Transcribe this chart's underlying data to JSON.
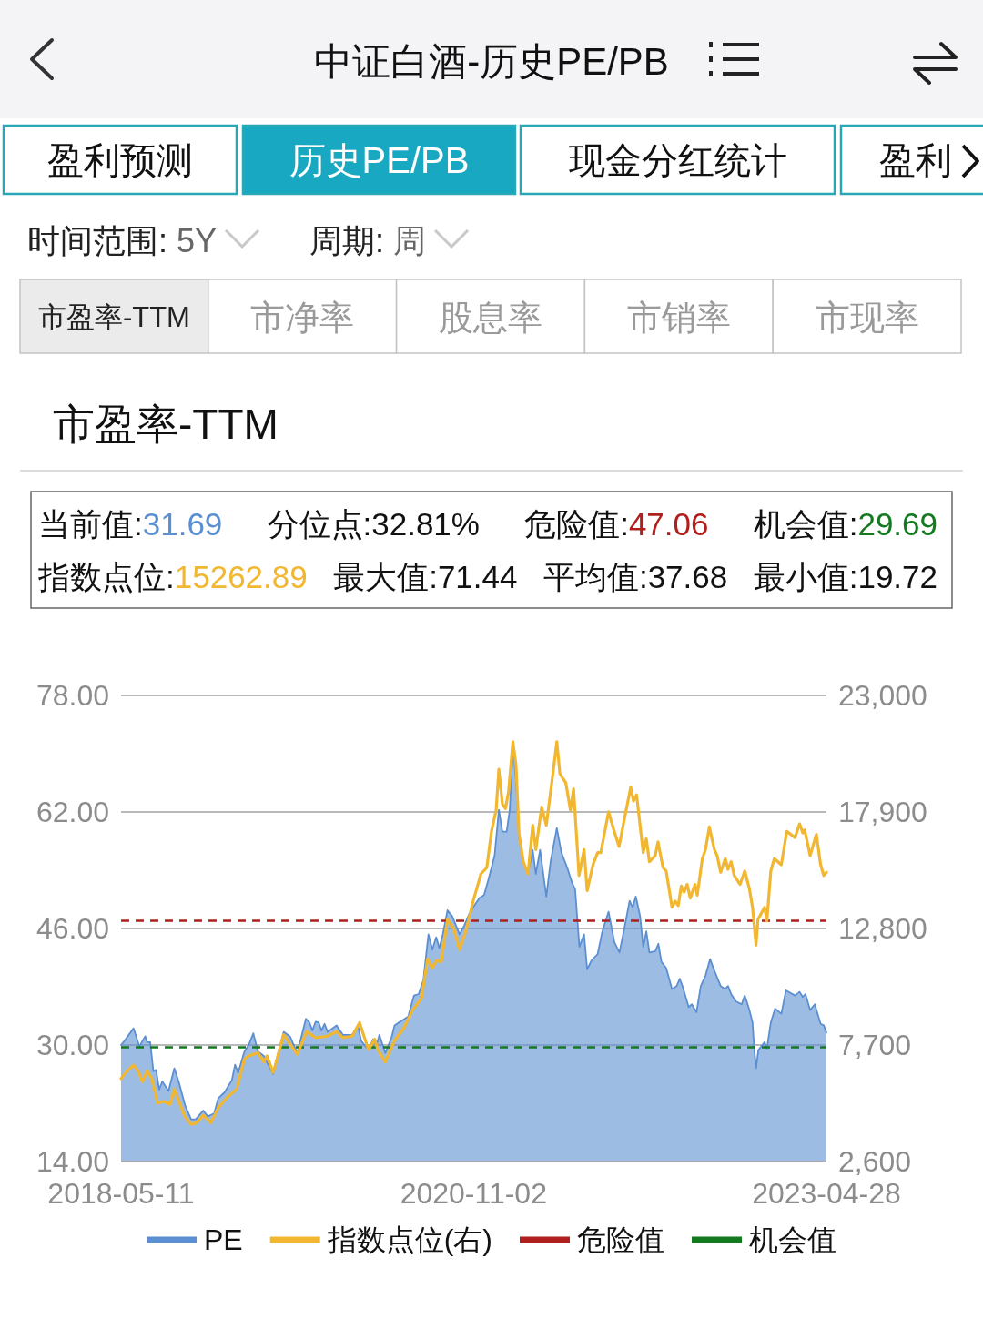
{
  "chart_data": {
    "type": "line",
    "title": "市盈率-TTM",
    "annotations": [
      "中证白酒-历史PE/PB",
      "盈利预测",
      "历史PE/PB",
      "现金分红统计",
      "盈利",
      "时间范围: 5Y",
      "周期: 周",
      "市盈率-TTM",
      "市净率",
      "股息率",
      "市销率",
      "市现率",
      "当前值:31.69",
      "分位点:32.81%",
      "危险值:47.06",
      "机会值:29.69",
      "指数点位:15262.89",
      "最大值:71.44",
      "平均值:37.68",
      "最小值:19.72"
    ],
    "xlim": [
      "2018-05-11",
      "2023-04-28"
    ],
    "xticks": [
      "2018-05-11",
      "2020-11-02",
      "2023-04-28"
    ],
    "ylim": [
      14,
      78
    ],
    "yticks": [
      {
        "value": 14,
        "label": "14.00"
      },
      {
        "value": 30,
        "label": "30.00"
      },
      {
        "value": 46,
        "label": "46.00"
      },
      {
        "value": 62,
        "label": "62.00"
      },
      {
        "value": 78,
        "label": "78.00"
      }
    ],
    "y2lim": [
      2600,
      23000
    ],
    "y2ticks": [
      {
        "value": 2600,
        "label": "2,600"
      },
      {
        "value": 7700,
        "label": "7,700"
      },
      {
        "value": 12800,
        "label": "12,800"
      },
      {
        "value": 17900,
        "label": "17,900"
      },
      {
        "value": 23000,
        "label": "23,000"
      }
    ],
    "grid": "y",
    "legend": "bottom",
    "ref_lines": [
      {
        "axis": "y",
        "value": 47.06,
        "label": "危险值",
        "color": "#b01e1e",
        "line_style": "dashed"
      },
      {
        "axis": "y",
        "value": 29.69,
        "label": "机会值",
        "color": "#137a1f",
        "line_style": "dashed"
      }
    ],
    "series": [
      {
        "name": "PE",
        "type": "area",
        "color": "#5b8fd1",
        "x": [
          "2018-05-11",
          "2018-05-20",
          "2018-06-12",
          "2018-06-27",
          "2018-07-12",
          "2018-07-17",
          "2018-07-25",
          "2018-08-02",
          "2018-08-09",
          "2018-08-17",
          "2018-08-25",
          "2018-09-10",
          "2018-09-25",
          "2018-10-07",
          "2018-10-22",
          "2018-11-07",
          "2018-11-19",
          "2018-12-08",
          "2018-12-20",
          "2019-01-05",
          "2019-01-16",
          "2019-02-01",
          "2019-02-20",
          "2019-02-28",
          "2019-03-08",
          "2019-03-24",
          "2019-04-04",
          "2019-04-16",
          "2019-04-28",
          "2019-05-13",
          "2019-06-06",
          "2019-06-17",
          "2019-07-03",
          "2019-07-19",
          "2019-08-07",
          "2019-08-29",
          "2019-09-07",
          "2019-09-15",
          "2019-09-23",
          "2019-10-01",
          "2019-10-08",
          "2019-10-16",
          "2019-10-24",
          "2019-11-16",
          "2019-12-02",
          "2019-12-26",
          "2020-01-10",
          "2020-01-18",
          "2020-02-06",
          "2020-02-18",
          "2020-02-26",
          "2020-03-05",
          "2020-03-20",
          "2020-04-05",
          "2020-04-13",
          "2020-04-24",
          "2020-05-06",
          "2020-05-18",
          "2020-06-02",
          "2020-06-14",
          "2020-06-26",
          "2020-07-03",
          "2020-07-09",
          "2020-07-19",
          "2020-07-29",
          "2020-08-06",
          "2020-08-15",
          "2020-08-27",
          "2020-09-08",
          "2020-09-27",
          "2020-10-09",
          "2020-10-21",
          "2020-11-01",
          "2020-11-17",
          "2020-11-29",
          "2020-12-10",
          "2020-12-18",
          "2020-12-26",
          "2021-01-06",
          "2021-01-15",
          "2021-01-26",
          "2021-02-03",
          "2021-02-11",
          "2021-02-19",
          "2021-02-27",
          "2021-03-10",
          "2021-03-22",
          "2021-04-03",
          "2021-04-11",
          "2021-04-22",
          "2021-05-08",
          "2021-05-19",
          "2021-06-04",
          "2021-06-16",
          "2021-07-01",
          "2021-07-13",
          "2021-07-21",
          "2021-08-01",
          "2021-08-13",
          "2021-08-21",
          "2021-09-01",
          "2021-09-17",
          "2021-09-29",
          "2021-10-15",
          "2021-10-30",
          "2021-11-12",
          "2021-11-26",
          "2021-12-08",
          "2021-12-16",
          "2021-12-24",
          "2022-01-04",
          "2022-01-12",
          "2022-01-20",
          "2022-01-28",
          "2022-02-12",
          "2022-02-20",
          "2022-02-28",
          "2022-03-12",
          "2022-03-27",
          "2022-04-08",
          "2022-04-16",
          "2022-04-23",
          "2022-05-09",
          "2022-05-17",
          "2022-05-29",
          "2022-06-09",
          "2022-06-21",
          "2022-07-03",
          "2022-07-14",
          "2022-07-30",
          "2022-08-11",
          "2022-08-18",
          "2022-08-26",
          "2022-09-07",
          "2022-09-22",
          "2022-09-30",
          "2022-10-12",
          "2022-10-20",
          "2022-10-24",
          "2022-10-29",
          "2022-11-04",
          "2022-11-20",
          "2022-11-26",
          "2022-12-06",
          "2022-12-17",
          "2023-01-02",
          "2023-01-14",
          "2023-02-06",
          "2023-02-18",
          "2023-02-26",
          "2023-03-05",
          "2023-03-17",
          "2023-03-29",
          "2023-04-13",
          "2023-04-21",
          "2023-04-28"
        ],
        "values": [
          30.0,
          30.6,
          32.3,
          29.8,
          31.2,
          30.4,
          30.4,
          26.4,
          26.6,
          23.9,
          25.0,
          23.7,
          26.8,
          24.8,
          21.8,
          19.8,
          19.8,
          21.0,
          20.2,
          20.6,
          22.7,
          23.5,
          25.2,
          27.3,
          26.2,
          29.1,
          30.0,
          31.6,
          29.1,
          28.5,
          26.0,
          28.5,
          31.8,
          31.2,
          28.9,
          33.6,
          33.1,
          32.0,
          33.2,
          33.1,
          32.0,
          32.9,
          31.8,
          32.7,
          31.4,
          31.4,
          32.7,
          30.6,
          29.3,
          30.8,
          29.8,
          31.4,
          28.9,
          31.0,
          32.7,
          33.1,
          33.5,
          33.9,
          36.8,
          37.0,
          38.9,
          42.3,
          45.2,
          43.1,
          44.8,
          43.3,
          45.2,
          48.5,
          47.7,
          45.2,
          46.4,
          47.9,
          48.9,
          50.2,
          50.6,
          52.7,
          54.3,
          56.0,
          62.3,
          59.3,
          59.3,
          62.3,
          71.4,
          66.4,
          58.5,
          55.2,
          53.5,
          56.8,
          53.5,
          56.8,
          50.4,
          55.2,
          59.8,
          56.4,
          54.3,
          52.3,
          51.4,
          43.5,
          45.2,
          40.4,
          41.6,
          42.5,
          45.6,
          48.3,
          44.1,
          42.7,
          46.4,
          49.8,
          48.9,
          50.4,
          47.7,
          43.5,
          45.6,
          42.7,
          42.9,
          43.9,
          41.4,
          40.6,
          37.7,
          38.1,
          39.1,
          38.1,
          35.2,
          35.6,
          34.5,
          38.1,
          39.5,
          41.8,
          40.2,
          38.1,
          37.7,
          38.1,
          37.0,
          36.0,
          35.6,
          36.8,
          34.8,
          33.1,
          29.8,
          26.8,
          29.3,
          30.4,
          29.5,
          33.1,
          35.0,
          34.3,
          37.5,
          36.8,
          37.3,
          36.6,
          37.0,
          34.8,
          35.6,
          32.9,
          32.7,
          31.7
        ]
      },
      {
        "name": "指数点位(右)",
        "type": "line",
        "axis": "y2",
        "color": "#f2b731",
        "x": [
          "2018-05-11",
          "2018-05-23",
          "2018-06-12",
          "2018-06-24",
          "2018-07-05",
          "2018-07-17",
          "2018-07-29",
          "2018-08-13",
          "2018-08-29",
          "2018-09-14",
          "2018-09-25",
          "2018-10-07",
          "2018-10-22",
          "2018-11-07",
          "2018-11-22",
          "2018-12-08",
          "2018-12-28",
          "2019-01-16",
          "2019-02-09",
          "2019-03-04",
          "2019-03-24",
          "2019-04-04",
          "2019-04-28",
          "2019-05-13",
          "2019-05-21",
          "2019-06-06",
          "2019-07-03",
          "2019-08-07",
          "2019-08-31",
          "2019-09-23",
          "2019-10-24",
          "2019-11-16",
          "2019-12-02",
          "2019-12-26",
          "2020-01-14",
          "2020-02-06",
          "2020-02-22",
          "2020-03-01",
          "2020-03-20",
          "2020-04-13",
          "2020-05-06",
          "2020-05-29",
          "2020-06-21",
          "2020-07-07",
          "2020-07-19",
          "2020-07-31",
          "2020-08-11",
          "2020-08-27",
          "2020-09-12",
          "2020-09-27",
          "2020-10-13",
          "2020-11-01",
          "2020-11-21",
          "2020-12-06",
          "2020-12-18",
          "2020-12-30",
          "2021-01-06",
          "2021-01-15",
          "2021-01-23",
          "2021-01-31",
          "2021-02-11",
          "2021-02-19",
          "2021-02-27",
          "2021-03-10",
          "2021-03-22",
          "2021-04-03",
          "2021-04-11",
          "2021-04-26",
          "2021-05-08",
          "2021-05-23",
          "2021-06-04",
          "2021-06-12",
          "2021-06-27",
          "2021-07-09",
          "2021-07-17",
          "2021-07-31",
          "2021-08-13",
          "2021-08-21",
          "2021-09-05",
          "2021-09-17",
          "2021-09-25",
          "2021-10-15",
          "2021-10-30",
          "2021-11-11",
          "2021-11-26",
          "2021-12-11",
          "2021-12-18",
          "2021-12-26",
          "2022-01-12",
          "2022-01-20",
          "2022-01-28",
          "2022-02-12",
          "2022-02-19",
          "2022-03-04",
          "2022-03-12",
          "2022-03-27",
          "2022-04-04",
          "2022-04-12",
          "2022-04-20",
          "2022-04-27",
          "2022-05-05",
          "2022-05-13",
          "2022-05-25",
          "2022-05-31",
          "2022-06-13",
          "2022-06-21",
          "2022-07-01",
          "2022-07-14",
          "2022-07-21",
          "2022-07-30",
          "2022-08-11",
          "2022-08-18",
          "2022-08-26",
          "2022-09-03",
          "2022-09-18",
          "2022-09-30",
          "2022-10-12",
          "2022-10-20",
          "2022-10-29",
          "2022-11-03",
          "2022-11-20",
          "2022-11-26",
          "2022-12-06",
          "2022-12-15",
          "2023-01-02",
          "2023-01-16",
          "2023-02-06",
          "2023-02-18",
          "2023-02-26",
          "2023-03-03",
          "2023-03-17",
          "2023-04-02",
          "2023-04-13",
          "2023-04-21",
          "2023-04-28"
        ],
        "values": [
          6230,
          6490,
          6820,
          6560,
          6090,
          6560,
          6230,
          5160,
          5230,
          5100,
          5760,
          5230,
          4570,
          4230,
          4300,
          4630,
          4300,
          4960,
          5430,
          5760,
          7090,
          7220,
          7360,
          6960,
          7220,
          6490,
          8150,
          7290,
          8290,
          8020,
          8090,
          8290,
          8020,
          8090,
          8680,
          7490,
          7950,
          7490,
          6960,
          7890,
          8420,
          9220,
          9740,
          11470,
          11080,
          11410,
          11340,
          13200,
          12800,
          11870,
          12670,
          14000,
          15190,
          15460,
          17050,
          17980,
          19770,
          18250,
          18050,
          18780,
          20970,
          19970,
          16920,
          15720,
          15190,
          17320,
          16250,
          18110,
          17320,
          19310,
          20970,
          19570,
          19180,
          17980,
          18910,
          15120,
          16250,
          14460,
          15590,
          16120,
          16120,
          17910,
          17020,
          16390,
          17710,
          18980,
          18380,
          18650,
          16120,
          16720,
          15720,
          15990,
          16590,
          15460,
          15320,
          13730,
          14000,
          13800,
          14660,
          14390,
          14730,
          14130,
          14730,
          14260,
          15860,
          16250,
          17250,
          16250,
          15990,
          15260,
          15860,
          15390,
          15720,
          15120,
          14730,
          15320,
          14530,
          13730,
          12070,
          13200,
          13730,
          13130,
          15320,
          15860,
          15590,
          17050,
          16780,
          17380,
          16980,
          17120,
          15990,
          16920,
          15590,
          15120,
          15260
        ]
      }
    ]
  }
}
